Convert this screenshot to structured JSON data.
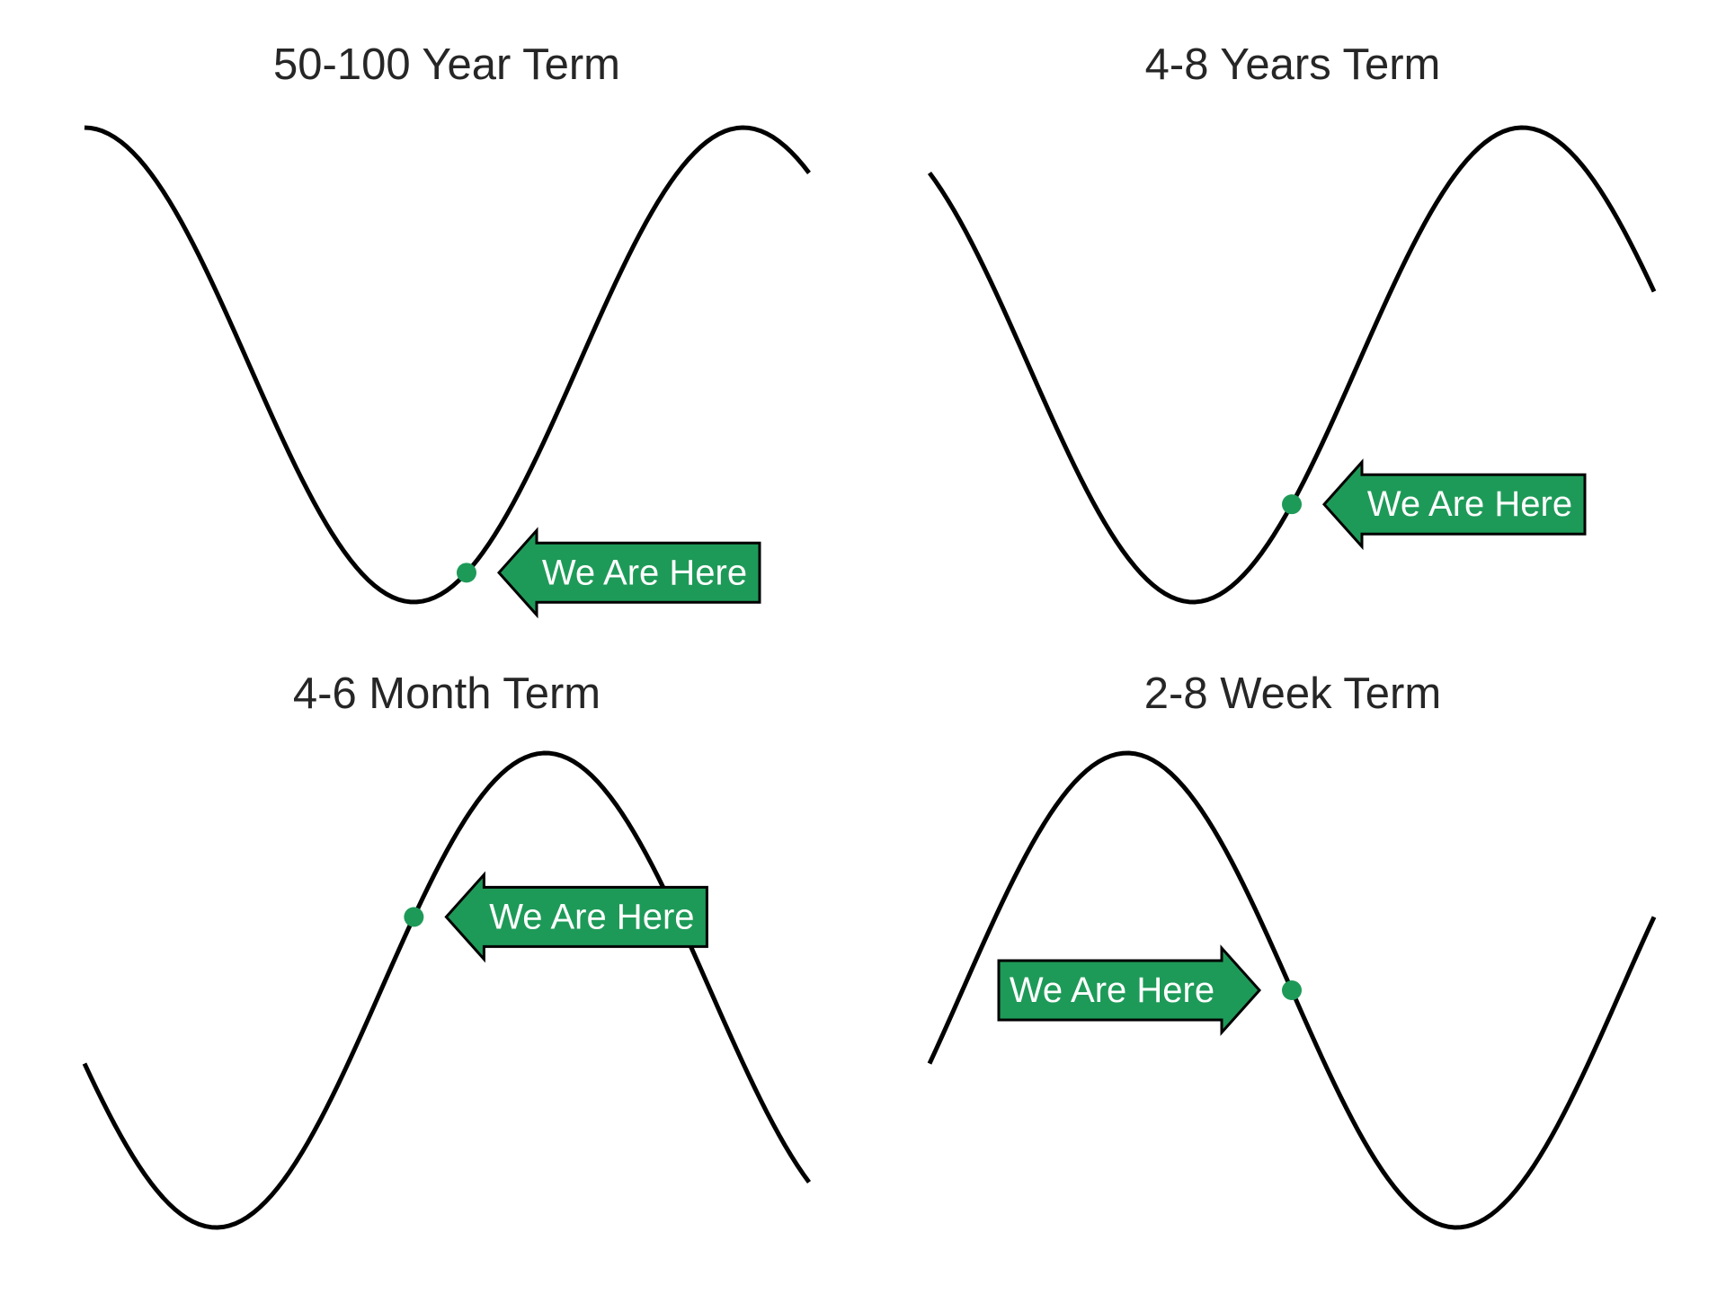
{
  "figure": {
    "background": "#ffffff",
    "curve_color": "#000000",
    "marker_color": "#1e9a58",
    "arrow_fill": "#1e9a58",
    "arrow_stroke": "#000000",
    "title_color": "#262626",
    "label_color": "#ffffff"
  },
  "chart_data": [
    {
      "type": "line",
      "title": "50-100 Year Term",
      "series": [
        {
          "function": "cos",
          "period": 1.0,
          "amplitude": 1.0,
          "x_range": [
            0.0,
            1.1
          ],
          "points": 120
        }
      ],
      "marker": {
        "x": 0.58,
        "label": "We Are Here",
        "arrow_direction": "left"
      },
      "grid": false,
      "axes_visible": false
    },
    {
      "type": "line",
      "title": "4-8 Years Term",
      "series": [
        {
          "function": "cos",
          "period": 1.0,
          "amplitude": 1.0,
          "x_range": [
            0.1,
            1.2
          ],
          "points": 120
        }
      ],
      "marker": {
        "x": 0.65,
        "label": "We Are Here",
        "arrow_direction": "left"
      },
      "grid": false,
      "axes_visible": false
    },
    {
      "type": "line",
      "title": "4-6 Month Term",
      "series": [
        {
          "function": "cos",
          "period": 1.0,
          "amplitude": 1.0,
          "x_range": [
            0.3,
            1.4
          ],
          "points": 120
        }
      ],
      "marker": {
        "x": 0.8,
        "label": "We Are Here",
        "arrow_direction": "left"
      },
      "grid": false,
      "axes_visible": false
    },
    {
      "type": "line",
      "title": "2-8 Week Term",
      "series": [
        {
          "function": "cos",
          "period": 1.0,
          "amplitude": 1.0,
          "x_range": [
            0.7,
            1.8
          ],
          "points": 120
        }
      ],
      "marker": {
        "x": 1.25,
        "label": "We Are Here",
        "arrow_direction": "right"
      },
      "grid": false,
      "axes_visible": false
    }
  ]
}
